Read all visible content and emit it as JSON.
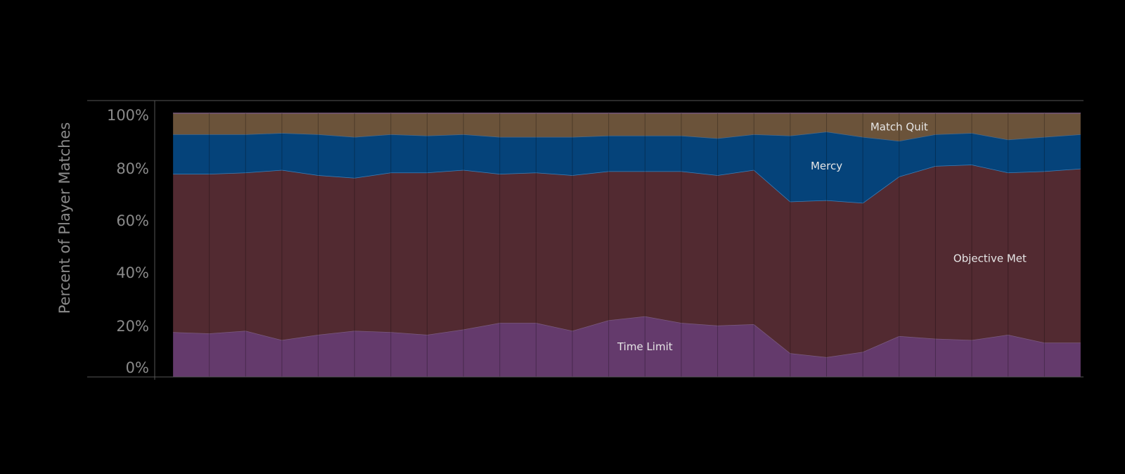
{
  "chart_data": {
    "type": "area",
    "stacked": true,
    "ylabel": "Percent of Player Matches",
    "yticks": [
      "0%",
      "20%",
      "40%",
      "60%",
      "80%",
      "100%"
    ],
    "ylim": [
      0,
      100
    ],
    "x_count": 26,
    "series": [
      {
        "name": "Time Limit",
        "color": "#643a6c",
        "values": [
          17,
          16.5,
          17.5,
          14,
          16,
          17.5,
          17,
          16,
          18,
          20.5,
          20.5,
          17.5,
          21.5,
          23,
          20.5,
          19.5,
          20,
          9,
          7.5,
          9.5,
          15.5,
          14.5,
          14,
          16,
          13,
          13
        ]
      },
      {
        "name": "Objective Met",
        "color": "#522a31",
        "values": [
          60,
          60.5,
          60,
          64.5,
          60.5,
          58,
          60.5,
          61.5,
          60.5,
          56.5,
          57,
          59,
          56.5,
          55,
          57.5,
          57,
          58.5,
          57.5,
          59.5,
          56.5,
          60.5,
          65.5,
          66.5,
          61.5,
          65,
          66
        ]
      },
      {
        "name": "Mercy",
        "color": "#05437a",
        "values": [
          15,
          15,
          14.5,
          14,
          15.5,
          15.5,
          14.5,
          14,
          13.5,
          14,
          13.5,
          14.5,
          13.5,
          13.5,
          13.5,
          14,
          13.5,
          25,
          26,
          25,
          13.5,
          12,
          12,
          12.5,
          13,
          13
        ]
      },
      {
        "name": "Match Quit",
        "color": "#6b533a",
        "values": [
          8,
          8,
          8,
          7.5,
          8,
          9,
          8,
          8.5,
          8,
          9,
          9,
          9,
          8.5,
          8.5,
          8.5,
          9.5,
          8,
          8.5,
          7,
          9,
          10.5,
          8,
          7.5,
          10,
          9,
          8
        ]
      }
    ]
  }
}
